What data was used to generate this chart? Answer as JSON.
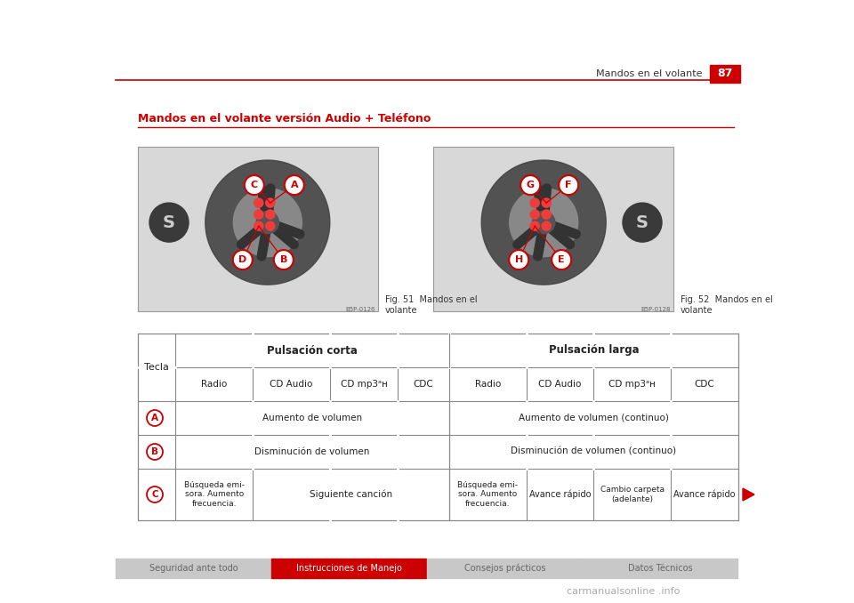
{
  "page_title": "Mandos en el volante",
  "page_number": "87",
  "section_title": "Mandos en el volante versión Audio + Teléfono",
  "fig1_caption": "Fig. 51  Mandos en el\nvolante",
  "fig2_caption": "Fig. 52  Mandos en el\nvolante",
  "fig1_code": "B5P-0126",
  "fig2_code": "B5P-0128",
  "header_bg_color": "#cc0000",
  "header_text_color": "#ffffff",
  "header_line_color": "#cc0000",
  "section_title_color": "#cc0000",
  "table_col_labels": [
    "Radio",
    "CD Audio",
    "CD mp3ᵃʜ",
    "CDC",
    "Radio",
    "CD Audio",
    "CD mp3ᵃʜ",
    "CDC"
  ],
  "row_A_short": "Aumento de volumen",
  "row_A_long": "Aumento de volumen (continuo)",
  "row_B_short": "Disminución de volumen",
  "row_B_long": "Disminución de volumen (continuo)",
  "row_C_short_radio": "Búsqueda emi-\nsora. Aumento\nfrecuencia.",
  "row_C_short_cd": "Siguiente canción",
  "row_C_long_radio": "Búsqueda emi-\nsora. Aumento\nfrecuencia.",
  "row_C_long_cdaudio": "Avance rápido",
  "row_C_long_cdmp3": "Cambio carpeta\n(adelante)",
  "row_C_long_cdc": "Avance rápido",
  "footer_sections": [
    {
      "text": "Seguridad ante todo",
      "bg": "#c8c8c8",
      "fg": "#666666"
    },
    {
      "text": "Instrucciones de Manejo",
      "bg": "#cc0000",
      "fg": "#ffffff"
    },
    {
      "text": "Consejos prácticos",
      "bg": "#c8c8c8",
      "fg": "#666666"
    },
    {
      "text": "Datos Técnicos",
      "bg": "#c8c8c8",
      "fg": "#666666"
    }
  ],
  "bg_color": "#ffffff",
  "img_bg": "#d8d8d8",
  "img_border": "#999999",
  "wheel_color": "#555555",
  "red": "#cc0000",
  "watermark": "carmanualsonline .info"
}
